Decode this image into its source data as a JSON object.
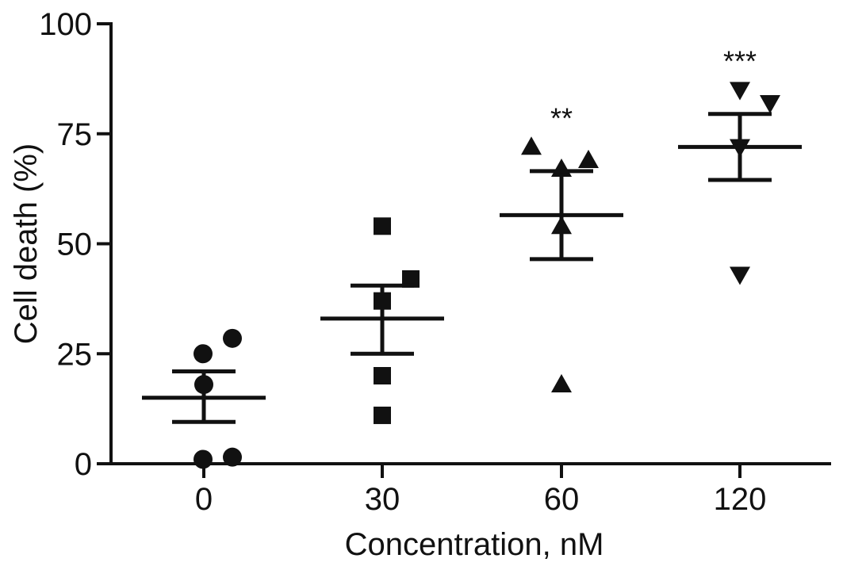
{
  "chart_data": {
    "type": "scatter",
    "title": "",
    "xlabel": "Concentration, nM",
    "ylabel": "Cell death (%)",
    "ylim": [
      0,
      100
    ],
    "yticks": [
      "0",
      "25",
      "50",
      "75",
      "100"
    ],
    "categories": [
      "0",
      "30",
      "60",
      "120"
    ],
    "grid": false,
    "groups": [
      {
        "category": "0",
        "marker": "circle",
        "points": [
          25,
          28.5,
          18,
          1,
          1.5
        ],
        "mean": 15,
        "error_upper": 21,
        "error_lower": 9.5,
        "significance": ""
      },
      {
        "category": "30",
        "marker": "square",
        "points": [
          54,
          42,
          37,
          20,
          11
        ],
        "mean": 33,
        "error_upper": 40.5,
        "error_lower": 25,
        "significance": ""
      },
      {
        "category": "60",
        "marker": "triangle-up",
        "points": [
          72,
          67,
          69,
          54,
          18
        ],
        "mean": 56.5,
        "error_upper": 66.5,
        "error_lower": 46.5,
        "significance": "**"
      },
      {
        "category": "120",
        "marker": "triangle-down",
        "points": [
          85,
          82,
          72,
          43
        ],
        "mean": 72,
        "error_upper": 79.5,
        "error_lower": 64.5,
        "significance": "***"
      }
    ]
  }
}
